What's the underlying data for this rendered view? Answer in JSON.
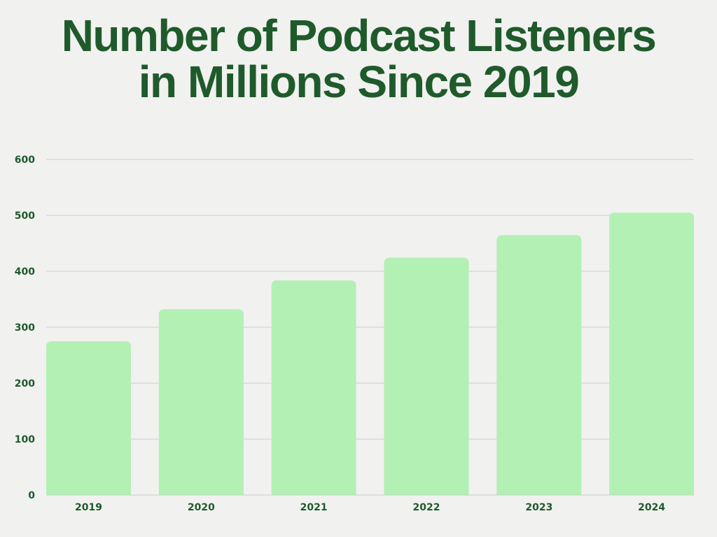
{
  "chart_data": {
    "type": "bar",
    "title_lines": [
      "Number of Podcast Listeners",
      "in Millions Since 2019"
    ],
    "categories": [
      "2019",
      "2020",
      "2021",
      "2022",
      "2023",
      "2024"
    ],
    "values": [
      274.8,
      332.2,
      383.7,
      424.2,
      464.7,
      504.9
    ],
    "ylim": [
      0,
      600
    ],
    "yticks": [
      "0",
      "100",
      "200",
      "300",
      "400",
      "500",
      "600"
    ],
    "xlabel": "",
    "ylabel": "",
    "grid": true,
    "colors": {
      "bar": "#b3f0b4",
      "text": "#1f5a2b",
      "grid": "#d8dbd8",
      "background": "#f1f1f0"
    }
  }
}
